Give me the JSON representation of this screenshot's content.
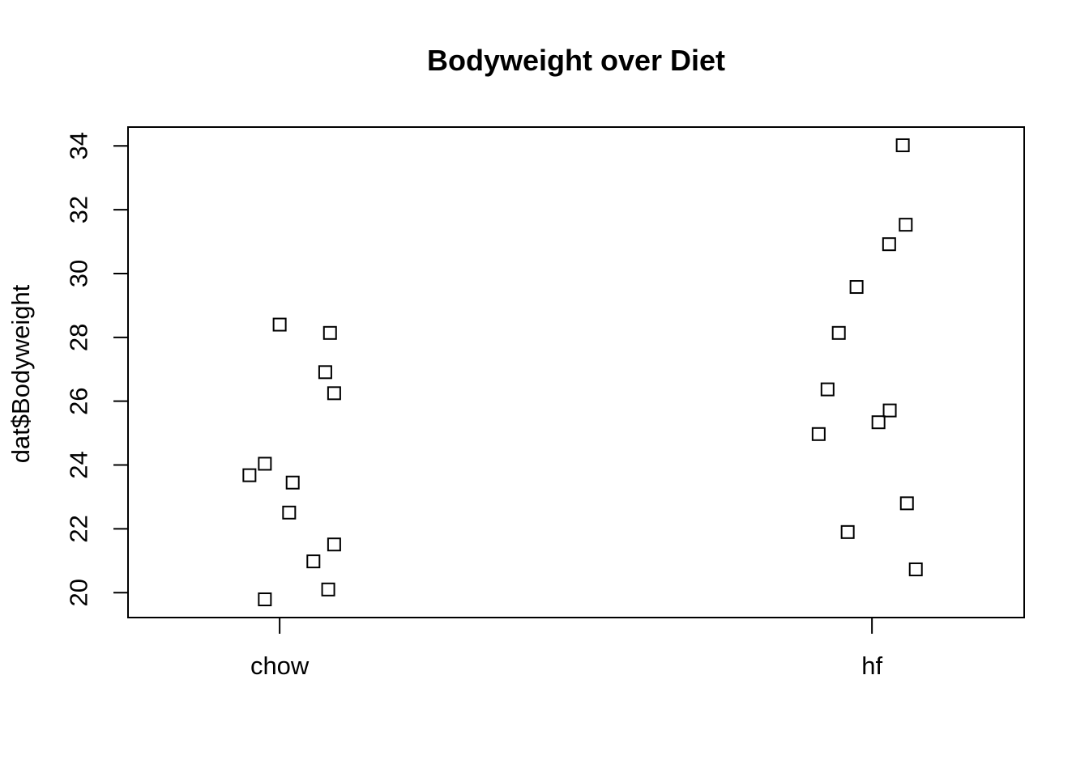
{
  "chart_data": {
    "type": "scatter",
    "title": "Bodyweight over Diet",
    "xlabel": "",
    "ylabel": "dat$Bodyweight",
    "categories": [
      "chow",
      "hf"
    ],
    "y_ticks": [
      20,
      22,
      24,
      26,
      28,
      30,
      32,
      34
    ],
    "ylim": [
      19.22,
      34.59
    ],
    "xlim": [
      0.744,
      2.257
    ],
    "grid": false,
    "legend": "none",
    "marker": {
      "shape": "open-square",
      "color": "#000000",
      "fill": "none"
    },
    "series": [
      {
        "name": "chow",
        "x_center": 1,
        "points": [
          {
            "x": 1.092,
            "y": 21.51
          },
          {
            "x": 1.085,
            "y": 28.14
          },
          {
            "x": 0.975,
            "y": 24.04
          },
          {
            "x": 1.022,
            "y": 23.45
          },
          {
            "x": 0.949,
            "y": 23.68
          },
          {
            "x": 0.975,
            "y": 19.79
          },
          {
            "x": 1.0,
            "y": 28.4
          },
          {
            "x": 1.057,
            "y": 20.98
          },
          {
            "x": 1.016,
            "y": 22.51
          },
          {
            "x": 1.082,
            "y": 20.1
          },
          {
            "x": 1.077,
            "y": 26.91
          },
          {
            "x": 1.092,
            "y": 26.25
          }
        ]
      },
      {
        "name": "hf",
        "x_center": 2,
        "points": [
          {
            "x": 2.03,
            "y": 25.71
          },
          {
            "x": 1.925,
            "y": 26.37
          },
          {
            "x": 2.059,
            "y": 22.8
          },
          {
            "x": 2.011,
            "y": 25.34
          },
          {
            "x": 1.91,
            "y": 24.97
          },
          {
            "x": 1.944,
            "y": 28.14
          },
          {
            "x": 1.974,
            "y": 29.58
          },
          {
            "x": 2.029,
            "y": 30.92
          },
          {
            "x": 2.052,
            "y": 34.02
          },
          {
            "x": 1.959,
            "y": 21.9
          },
          {
            "x": 2.057,
            "y": 31.53
          },
          {
            "x": 2.074,
            "y": 20.73
          }
        ]
      }
    ]
  }
}
